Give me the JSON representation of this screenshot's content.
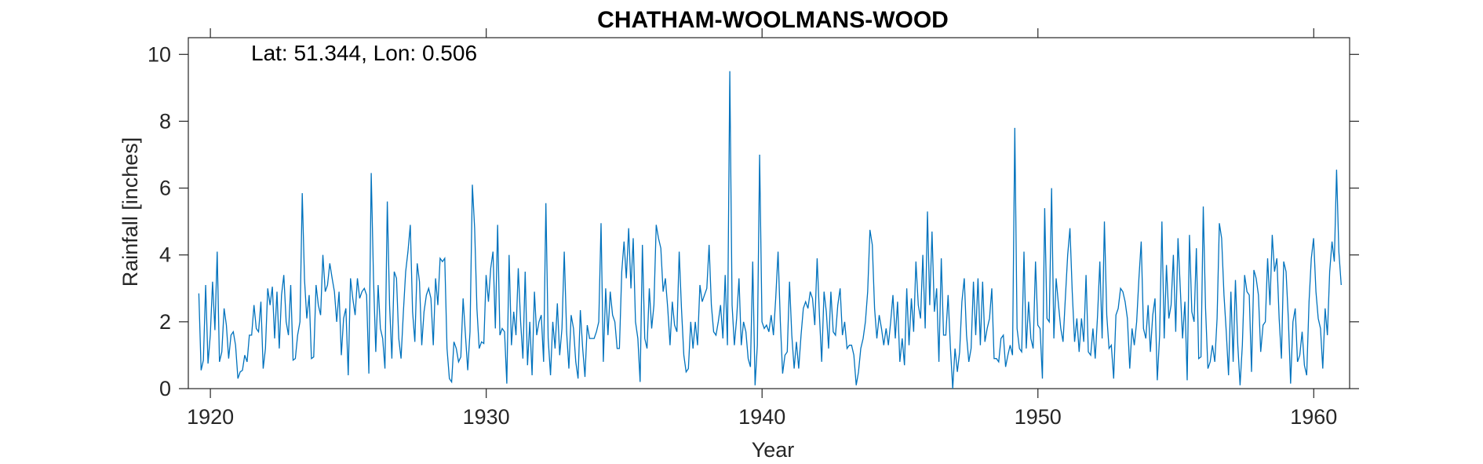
{
  "chart_data": {
    "type": "line",
    "title": "CHATHAM-WOOLMANS-WOOD",
    "annotation": "Lat: 51.344, Lon: 0.506",
    "xlabel": "Year",
    "ylabel": "Rainfall [inches]",
    "xlim": [
      1919.2,
      1961.3
    ],
    "ylim": [
      0,
      10.5
    ],
    "xticks": [
      1920,
      1930,
      1940,
      1950,
      1960
    ],
    "yticks": [
      0,
      2,
      4,
      6,
      8,
      10
    ],
    "grid": false,
    "line_color": "#0072BD",
    "axis_color": "#262626",
    "series": [
      {
        "x_start": 1919.58,
        "x_step": 0.08333,
        "values": [
          2.85,
          0.55,
          0.85,
          3.1,
          0.75,
          1.6,
          3.2,
          1.75,
          4.1,
          0.8,
          1.1,
          2.4,
          1.9,
          0.9,
          1.6,
          1.7,
          1.3,
          0.3,
          0.5,
          0.55,
          1.0,
          0.8,
          1.6,
          1.6,
          2.5,
          1.8,
          1.7,
          2.6,
          0.6,
          1.2,
          3.0,
          2.5,
          3.05,
          1.5,
          2.9,
          1.2,
          2.8,
          3.4,
          2.0,
          1.6,
          3.1,
          0.85,
          0.9,
          1.6,
          2.0,
          5.85,
          3.25,
          2.1,
          2.8,
          0.9,
          0.95,
          3.1,
          2.5,
          2.2,
          4.0,
          2.9,
          3.1,
          3.75,
          3.3,
          2.9,
          2.0,
          2.9,
          1.0,
          2.1,
          2.4,
          0.4,
          3.3,
          2.7,
          2.2,
          3.3,
          2.7,
          2.9,
          3.0,
          2.8,
          0.45,
          6.45,
          3.3,
          1.1,
          3.1,
          1.8,
          1.5,
          0.6,
          5.6,
          2.5,
          0.9,
          3.5,
          3.3,
          1.5,
          0.9,
          2.3,
          3.5,
          4.1,
          4.9,
          2.3,
          1.4,
          3.75,
          3.2,
          1.3,
          2.3,
          2.8,
          3.0,
          2.7,
          1.3,
          3.3,
          2.5,
          3.9,
          3.8,
          3.9,
          1.2,
          0.3,
          0.2,
          1.4,
          1.2,
          0.8,
          0.95,
          2.7,
          1.6,
          0.55,
          1.7,
          6.1,
          4.8,
          2.4,
          1.2,
          1.4,
          1.35,
          3.4,
          2.6,
          3.6,
          4.1,
          1.8,
          4.9,
          1.6,
          1.8,
          1.7,
          0.15,
          4.0,
          1.3,
          2.3,
          1.6,
          3.6,
          2.0,
          0.9,
          3.5,
          0.7,
          2.0,
          0.4,
          2.9,
          1.6,
          2.0,
          2.2,
          0.8,
          5.55,
          1.5,
          0.4,
          2.0,
          1.2,
          2.55,
          1.0,
          1.8,
          4.1,
          1.7,
          0.6,
          2.2,
          1.8,
          0.8,
          0.3,
          2.35,
          1.2,
          0.35,
          1.9,
          1.5,
          1.5,
          1.5,
          1.7,
          2.0,
          4.95,
          0.8,
          3.0,
          1.6,
          2.9,
          2.2,
          2.0,
          1.2,
          1.2,
          3.5,
          4.4,
          3.3,
          4.8,
          3.0,
          4.5,
          2.0,
          1.5,
          0.2,
          4.3,
          1.5,
          1.2,
          3.0,
          1.8,
          2.5,
          4.9,
          4.5,
          4.2,
          2.9,
          3.3,
          2.4,
          1.3,
          2.6,
          1.9,
          1.7,
          4.1,
          2.4,
          1.0,
          0.5,
          0.6,
          2.0,
          1.2,
          2.0,
          1.3,
          3.1,
          2.6,
          2.8,
          3.0,
          4.3,
          2.5,
          1.7,
          1.6,
          2.0,
          2.5,
          1.5,
          3.4,
          1.3,
          9.5,
          2.5,
          1.3,
          2.1,
          3.3,
          1.3,
          2.0,
          1.7,
          0.9,
          0.65,
          3.8,
          0.1,
          1.3,
          7.0,
          2.0,
          1.8,
          1.9,
          1.7,
          2.2,
          1.6,
          2.7,
          4.1,
          2.0,
          0.45,
          1.0,
          1.1,
          3.2,
          1.6,
          0.6,
          1.4,
          0.6,
          1.6,
          2.4,
          2.6,
          2.4,
          2.9,
          2.7,
          1.9,
          3.9,
          2.2,
          0.8,
          2.9,
          2.3,
          1.2,
          2.9,
          1.7,
          1.6,
          2.5,
          3.0,
          1.6,
          2.0,
          1.2,
          1.3,
          1.3,
          1.0,
          0.1,
          0.5,
          1.2,
          1.5,
          2.0,
          2.9,
          4.75,
          4.3,
          2.4,
          1.5,
          2.2,
          1.8,
          1.3,
          1.8,
          1.3,
          2.0,
          2.8,
          1.5,
          2.6,
          0.8,
          1.5,
          0.7,
          3.0,
          1.3,
          2.7,
          1.7,
          3.8,
          2.5,
          2.1,
          4.0,
          1.8,
          5.3,
          2.5,
          4.7,
          2.3,
          3.0,
          0.8,
          3.9,
          1.6,
          1.6,
          2.8,
          1.2,
          0.0,
          1.2,
          0.5,
          1.1,
          2.6,
          3.3,
          1.6,
          0.8,
          1.2,
          3.2,
          1.6,
          3.3,
          1.3,
          3.2,
          1.4,
          1.8,
          2.1,
          3.0,
          0.9,
          0.9,
          0.8,
          1.5,
          1.6,
          0.65,
          1.0,
          1.3,
          1.0,
          7.8,
          1.8,
          1.2,
          1.1,
          4.1,
          1.2,
          2.6,
          1.5,
          1.2,
          3.8,
          1.9,
          1.8,
          0.3,
          5.4,
          2.1,
          2.0,
          6.0,
          1.5,
          3.3,
          2.5,
          1.8,
          1.4,
          2.7,
          4.0,
          4.8,
          2.9,
          1.4,
          2.1,
          1.1,
          2.1,
          1.4,
          3.4,
          1.1,
          1.0,
          1.8,
          0.9,
          2.2,
          3.8,
          1.5,
          5.0,
          2.2,
          1.2,
          1.3,
          0.3,
          2.2,
          2.4,
          3.0,
          2.9,
          2.6,
          2.1,
          0.6,
          1.8,
          1.3,
          2.0,
          3.3,
          4.4,
          1.8,
          1.5,
          2.5,
          1.1,
          2.2,
          2.7,
          0.25,
          1.6,
          5.0,
          1.5,
          3.7,
          2.1,
          2.5,
          4.0,
          1.7,
          4.5,
          3.0,
          1.5,
          2.6,
          0.25,
          4.6,
          2.3,
          2.0,
          4.2,
          0.9,
          0.95,
          5.45,
          2.4,
          0.6,
          0.8,
          1.3,
          0.8,
          2.1,
          4.95,
          4.5,
          2.8,
          1.7,
          0.4,
          2.9,
          0.8,
          3.25,
          1.3,
          0.1,
          1.3,
          3.4,
          2.9,
          2.8,
          0.5,
          3.55,
          3.3,
          2.8,
          1.1,
          1.9,
          2.0,
          3.9,
          2.5,
          4.6,
          3.5,
          3.9,
          2.1,
          0.9,
          3.8,
          3.5,
          2.1,
          0.15,
          2.0,
          2.4,
          0.8,
          1.0,
          1.7,
          0.7,
          0.4,
          2.6,
          3.9,
          4.5,
          2.9,
          2.1,
          1.8,
          0.6,
          2.4,
          1.6,
          3.5,
          4.4,
          3.8,
          6.55,
          4.1,
          3.1
        ]
      }
    ]
  }
}
